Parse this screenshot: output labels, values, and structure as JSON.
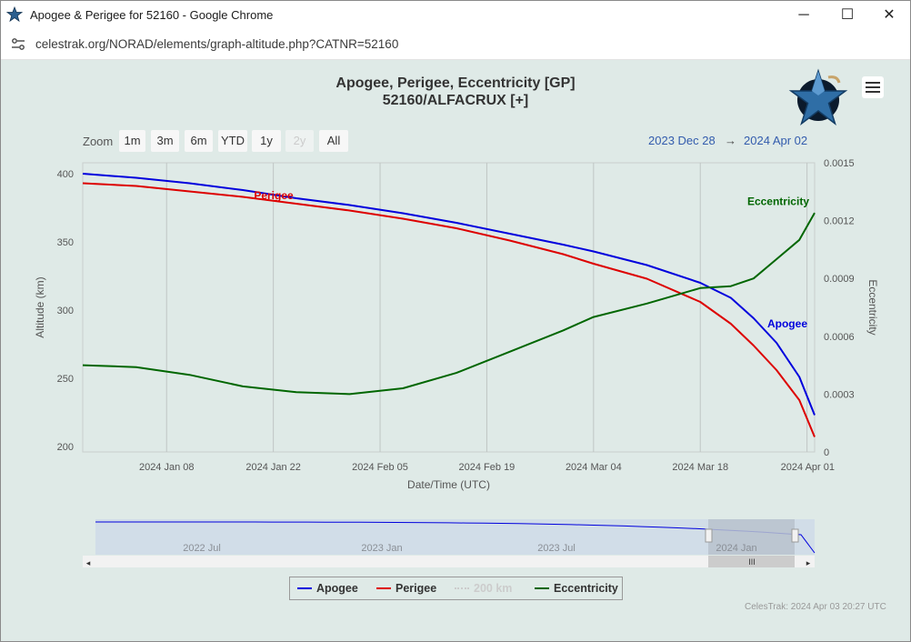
{
  "window": {
    "title": "Apogee & Perigee for 52160 - Google Chrome",
    "url": "celestrak.org/NORAD/elements/graph-altitude.php?CATNR=52160",
    "minimize": "─",
    "maximize": "☐",
    "close": "✕"
  },
  "toolbar": {
    "zoom_label": "Zoom",
    "zoom_buttons": [
      "1m",
      "3m",
      "6m",
      "YTD",
      "1y",
      "2y",
      "All"
    ],
    "range_from": "2023 Dec 28",
    "range_arrow": "→",
    "range_to": "2024 Apr 02"
  },
  "credit": "CelesTrak: 2024 Apr 03 20:27 UTC",
  "navigator": {
    "labels": [
      "2022 Jul",
      "2023 Jan",
      "2023 Jul",
      "2024 Jan"
    ],
    "scroll_grip": "III",
    "left_arrow": "◂",
    "right_arrow": "▸"
  },
  "legend": [
    {
      "name": "Apogee",
      "color": "#0000dd",
      "active": true
    },
    {
      "name": "Perigee",
      "color": "#dd0000",
      "active": true
    },
    {
      "name": "200 km",
      "color": "#cccccc",
      "active": false
    },
    {
      "name": "Eccentricity",
      "color": "#006600",
      "active": true
    }
  ],
  "colors": {
    "apogee": "#0000dd",
    "perigee": "#dd0000",
    "eccentricity": "#006600",
    "background": "#dfeae7"
  },
  "chart_data": {
    "type": "line",
    "title": "Apogee, Perigee, Eccentricity [GP]",
    "subtitle": "52160/ALFACRUX [+]",
    "xlabel": "Date/Time (UTC)",
    "ylabel": "Altitude (km)",
    "y2label": "Eccentricity",
    "x_ticks": [
      "2024 Jan 08",
      "2024 Jan 22",
      "2024 Feb 05",
      "2024 Feb 19",
      "2024 Mar 04",
      "2024 Mar 18",
      "2024 Apr 01"
    ],
    "y_ticks": [
      200,
      250,
      300,
      350,
      400
    ],
    "y2_ticks": [
      0,
      0.0003,
      0.0006,
      0.0009,
      0.0012,
      0.0015
    ],
    "y2_tick_labels": [
      "0",
      "0.0003",
      "0.0006",
      "0.0009",
      "0.0012",
      "0.0015"
    ],
    "xlim": [
      "2023-12-28",
      "2024-04-02"
    ],
    "ylim": [
      196,
      408
    ],
    "y2lim": [
      0,
      0.0015
    ],
    "grid": "vertical",
    "annotations": [
      "Perigee",
      "Eccentricity",
      "Apogee"
    ],
    "series": [
      {
        "name": "Apogee",
        "axis": "left",
        "points": [
          [
            "2023-12-28",
            400
          ],
          [
            "2024-01-04",
            397
          ],
          [
            "2024-01-11",
            393
          ],
          [
            "2024-01-18",
            388
          ],
          [
            "2024-01-25",
            382
          ],
          [
            "2024-02-01",
            377
          ],
          [
            "2024-02-08",
            371
          ],
          [
            "2024-02-15",
            364
          ],
          [
            "2024-02-22",
            356
          ],
          [
            "2024-02-29",
            348
          ],
          [
            "2024-03-04",
            343
          ],
          [
            "2024-03-11",
            333
          ],
          [
            "2024-03-18",
            320
          ],
          [
            "2024-03-22",
            309
          ],
          [
            "2024-03-25",
            294
          ],
          [
            "2024-03-28",
            276
          ],
          [
            "2024-03-31",
            251
          ],
          [
            "2024-04-02",
            223
          ]
        ]
      },
      {
        "name": "Perigee",
        "axis": "left",
        "points": [
          [
            "2023-12-28",
            393
          ],
          [
            "2024-01-04",
            391
          ],
          [
            "2024-01-11",
            387
          ],
          [
            "2024-01-18",
            383
          ],
          [
            "2024-01-25",
            378
          ],
          [
            "2024-02-01",
            373
          ],
          [
            "2024-02-08",
            367
          ],
          [
            "2024-02-15",
            360
          ],
          [
            "2024-02-22",
            351
          ],
          [
            "2024-02-29",
            341
          ],
          [
            "2024-03-04",
            334
          ],
          [
            "2024-03-11",
            323
          ],
          [
            "2024-03-18",
            306
          ],
          [
            "2024-03-22",
            290
          ],
          [
            "2024-03-25",
            274
          ],
          [
            "2024-03-28",
            256
          ],
          [
            "2024-03-31",
            234
          ],
          [
            "2024-04-02",
            207
          ]
        ]
      },
      {
        "name": "Eccentricity",
        "axis": "right",
        "points": [
          [
            "2023-12-28",
            0.00045
          ],
          [
            "2024-01-04",
            0.00044
          ],
          [
            "2024-01-11",
            0.0004
          ],
          [
            "2024-01-18",
            0.00034
          ],
          [
            "2024-01-25",
            0.00031
          ],
          [
            "2024-02-01",
            0.0003
          ],
          [
            "2024-02-08",
            0.00033
          ],
          [
            "2024-02-15",
            0.00041
          ],
          [
            "2024-02-22",
            0.00052
          ],
          [
            "2024-02-29",
            0.00063
          ],
          [
            "2024-03-04",
            0.0007
          ],
          [
            "2024-03-11",
            0.00077
          ],
          [
            "2024-03-18",
            0.00085
          ],
          [
            "2024-03-22",
            0.00086
          ],
          [
            "2024-03-25",
            0.0009
          ],
          [
            "2024-03-28",
            0.001
          ],
          [
            "2024-03-31",
            0.0011
          ],
          [
            "2024-04-02",
            0.00124
          ]
        ]
      }
    ]
  }
}
